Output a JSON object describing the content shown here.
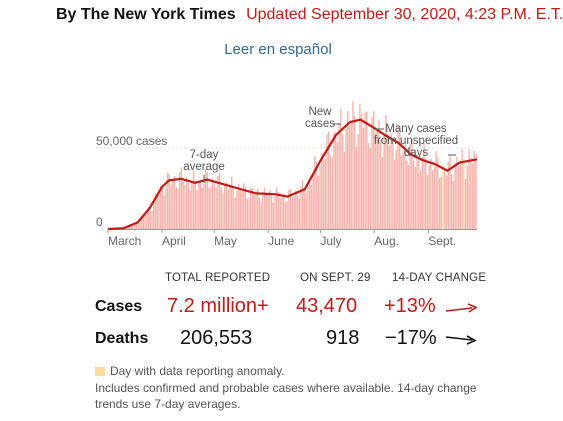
{
  "header": {
    "byline": "By The New York Times",
    "updated": "Updated September 30, 2020, 4:23 P.M. E.T.",
    "link_label": "Leer en español"
  },
  "chart_data": {
    "type": "bar",
    "overlay": "line",
    "ylim": [
      0,
      80000
    ],
    "y_ticks": [
      {
        "value": 0,
        "label": "0"
      },
      {
        "value": 50000,
        "label": "50,000 cases"
      }
    ],
    "x_start": "2020-03-01",
    "x_end": "2020-09-29",
    "x_ticks": [
      {
        "date": "2020-03-01",
        "label": "March"
      },
      {
        "date": "2020-04-01",
        "label": "April"
      },
      {
        "date": "2020-05-01",
        "label": "May"
      },
      {
        "date": "2020-06-01",
        "label": "June"
      },
      {
        "date": "2020-07-01",
        "label": "July"
      },
      {
        "date": "2020-08-01",
        "label": "Aug."
      },
      {
        "date": "2020-09-01",
        "label": "Sept."
      }
    ],
    "avg_points": [
      [
        "2020-03-01",
        0
      ],
      [
        "2020-03-10",
        500
      ],
      [
        "2020-03-18",
        4000
      ],
      [
        "2020-03-25",
        13000
      ],
      [
        "2020-04-01",
        26000
      ],
      [
        "2020-04-05",
        30000
      ],
      [
        "2020-04-12",
        31000
      ],
      [
        "2020-04-20",
        28500
      ],
      [
        "2020-04-27",
        30500
      ],
      [
        "2020-05-05",
        28000
      ],
      [
        "2020-05-15",
        25000
      ],
      [
        "2020-05-25",
        22000
      ],
      [
        "2020-06-05",
        21500
      ],
      [
        "2020-06-12",
        20000
      ],
      [
        "2020-06-22",
        24500
      ],
      [
        "2020-07-01",
        42000
      ],
      [
        "2020-07-10",
        58000
      ],
      [
        "2020-07-18",
        66000
      ],
      [
        "2020-07-24",
        67500
      ],
      [
        "2020-07-31",
        63000
      ],
      [
        "2020-08-07",
        58000
      ],
      [
        "2020-08-15",
        53000
      ],
      [
        "2020-08-22",
        46000
      ],
      [
        "2020-08-29",
        42500
      ],
      [
        "2020-09-05",
        40000
      ],
      [
        "2020-09-12",
        36000
      ],
      [
        "2020-09-19",
        41000
      ],
      [
        "2020-09-29",
        43000
      ]
    ],
    "anomaly_days": [
      "2020-09-10",
      "2020-09-22"
    ],
    "annotations": [
      {
        "text": "7-day average",
        "lines": [
          "7-day",
          "average"
        ]
      },
      {
        "text": "New cases",
        "lines": [
          "New",
          "cases"
        ]
      },
      {
        "text": "Many cases from unspecified days",
        "lines": [
          "Many cases",
          "from unspecified",
          "days"
        ]
      }
    ]
  },
  "table": {
    "headers": [
      "TOTAL REPORTED",
      "ON SEPT. 29",
      "14-DAY CHANGE"
    ],
    "rows": [
      {
        "label": "Cases",
        "total": "7.2 million+",
        "on_day": "43,470",
        "change": "+13%",
        "trend": "up"
      },
      {
        "label": "Deaths",
        "total": "206,553",
        "on_day": "918",
        "change": "−17%",
        "trend": "down"
      }
    ]
  },
  "notes": {
    "legend": "Day with data reporting anomaly.",
    "line1": "Includes confirmed and probable cases where available. 14-day change",
    "line2": "trends use 7-day averages."
  },
  "colors": {
    "accent_red": "#c11b17",
    "bar_pink": "#f4b6ae",
    "anomaly_yellow": "#fbdba1",
    "link_blue": "#326891"
  }
}
